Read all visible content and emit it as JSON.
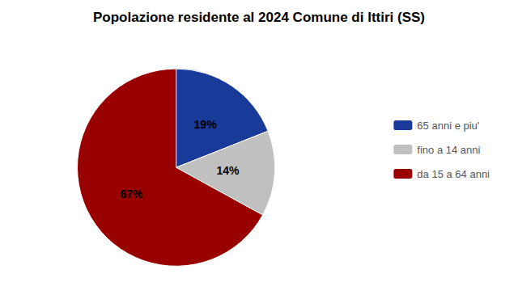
{
  "chart_data": {
    "type": "pie",
    "title": "Popolazione residente al 2024 Comune di Ittiri (SS)",
    "categories": [
      "65 anni e piu'",
      "fino a 14 anni",
      "da 15 a 64 anni"
    ],
    "values": [
      19,
      14,
      67
    ],
    "value_labels": [
      "19%",
      "14%",
      "67%"
    ],
    "colors": [
      "#1a3a99",
      "#c0c0c0",
      "#990000"
    ],
    "data_labels": true,
    "legend": "right"
  }
}
